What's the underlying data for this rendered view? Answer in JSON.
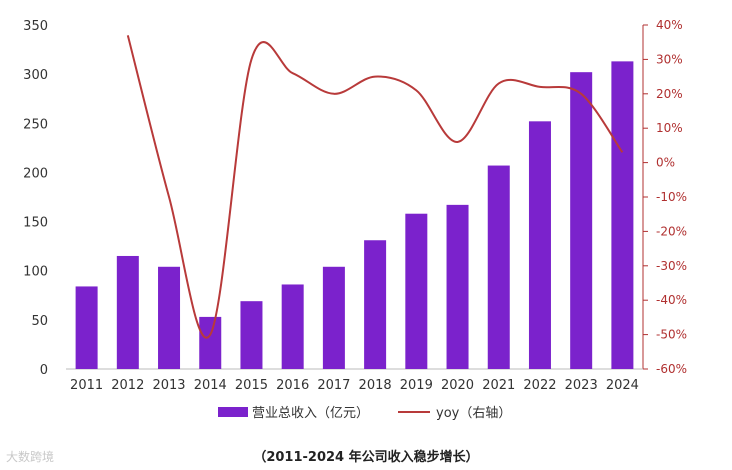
{
  "chart_data": {
    "type": "bar",
    "categories": [
      "2011",
      "2012",
      "2013",
      "2014",
      "2015",
      "2016",
      "2017",
      "2018",
      "2019",
      "2020",
      "2021",
      "2022",
      "2023",
      "2024"
    ],
    "series": [
      {
        "name": "营业总收入（亿元）",
        "type": "bar",
        "axis": "left",
        "values": [
          84,
          115,
          104,
          53,
          69,
          86,
          104,
          131,
          158,
          167,
          207,
          252,
          302,
          313
        ]
      },
      {
        "name": "yoy（右轴）",
        "type": "line",
        "axis": "right",
        "values": [
          null,
          37,
          -10,
          -50,
          30,
          26,
          20,
          25,
          21,
          6,
          23,
          22,
          20,
          3
        ]
      }
    ],
    "ylim_left": [
      0,
      350
    ],
    "yticks_left": [
      0,
      50,
      100,
      150,
      200,
      250,
      300,
      350
    ],
    "ylim_right": [
      -60,
      40
    ],
    "yticks_right": [
      "-60%",
      "-50%",
      "-40%",
      "-30%",
      "-20%",
      "-10%",
      "0%",
      "10%",
      "20%",
      "30%",
      "40%"
    ],
    "legend_position": "bottom",
    "colors": {
      "bar": "#7b22cc",
      "line": "#b83a3a",
      "right_axis": "#b03030"
    }
  },
  "caption": "（2011-2024 年公司收入稳步增长）",
  "watermark": "大数跨境"
}
